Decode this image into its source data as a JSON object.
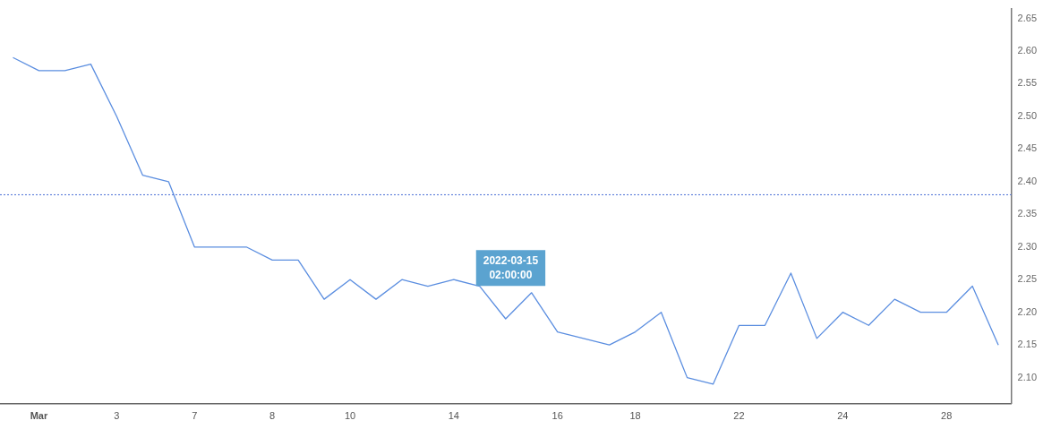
{
  "chart_data": {
    "type": "line",
    "categories": [
      null,
      "Mar",
      null,
      null,
      "3",
      null,
      null,
      "7",
      null,
      null,
      "8",
      null,
      null,
      "10",
      null,
      null,
      null,
      "14",
      null,
      null,
      null,
      "16",
      null,
      null,
      "18",
      null,
      null,
      null,
      "22",
      null,
      null,
      null,
      "24",
      null,
      null,
      null,
      "28",
      null,
      null
    ],
    "series": [
      {
        "color": "#5b8ee0",
        "values": [
          2.59,
          2.57,
          2.57,
          2.58,
          2.5,
          2.41,
          2.4,
          2.3,
          2.3,
          2.3,
          2.28,
          2.28,
          2.22,
          2.25,
          2.22,
          2.25,
          2.24,
          2.25,
          2.24,
          2.19,
          2.23,
          2.17,
          2.16,
          2.15,
          2.17,
          2.2,
          2.1,
          2.09,
          2.18,
          2.18,
          2.26,
          2.16,
          2.2,
          2.18,
          2.22,
          2.2,
          2.2,
          2.24,
          2.15
        ]
      }
    ],
    "ylim": [
      2.06,
      2.665
    ],
    "yticks": [
      {
        "value": 2.1,
        "label": "2.10"
      },
      2.15,
      {
        "value": 2.2,
        "label": "2.20"
      },
      2.25,
      {
        "value": 2.3,
        "label": "2.30"
      },
      2.35,
      {
        "value": 2.4,
        "label": "2.40"
      },
      2.45,
      {
        "value": 2.5,
        "label": "2.50"
      },
      2.55,
      {
        "value": 2.6,
        "label": "2.60"
      },
      2.65
    ],
    "ref_lines": [
      {
        "axis": "y",
        "value": 2.38,
        "color": "#4a6fd6",
        "line_style": "dotted"
      }
    ],
    "annotations": [
      "2022-03-15\n02:00:00"
    ],
    "grid": false,
    "legend": false,
    "marker": "none",
    "line_style": "solid"
  }
}
